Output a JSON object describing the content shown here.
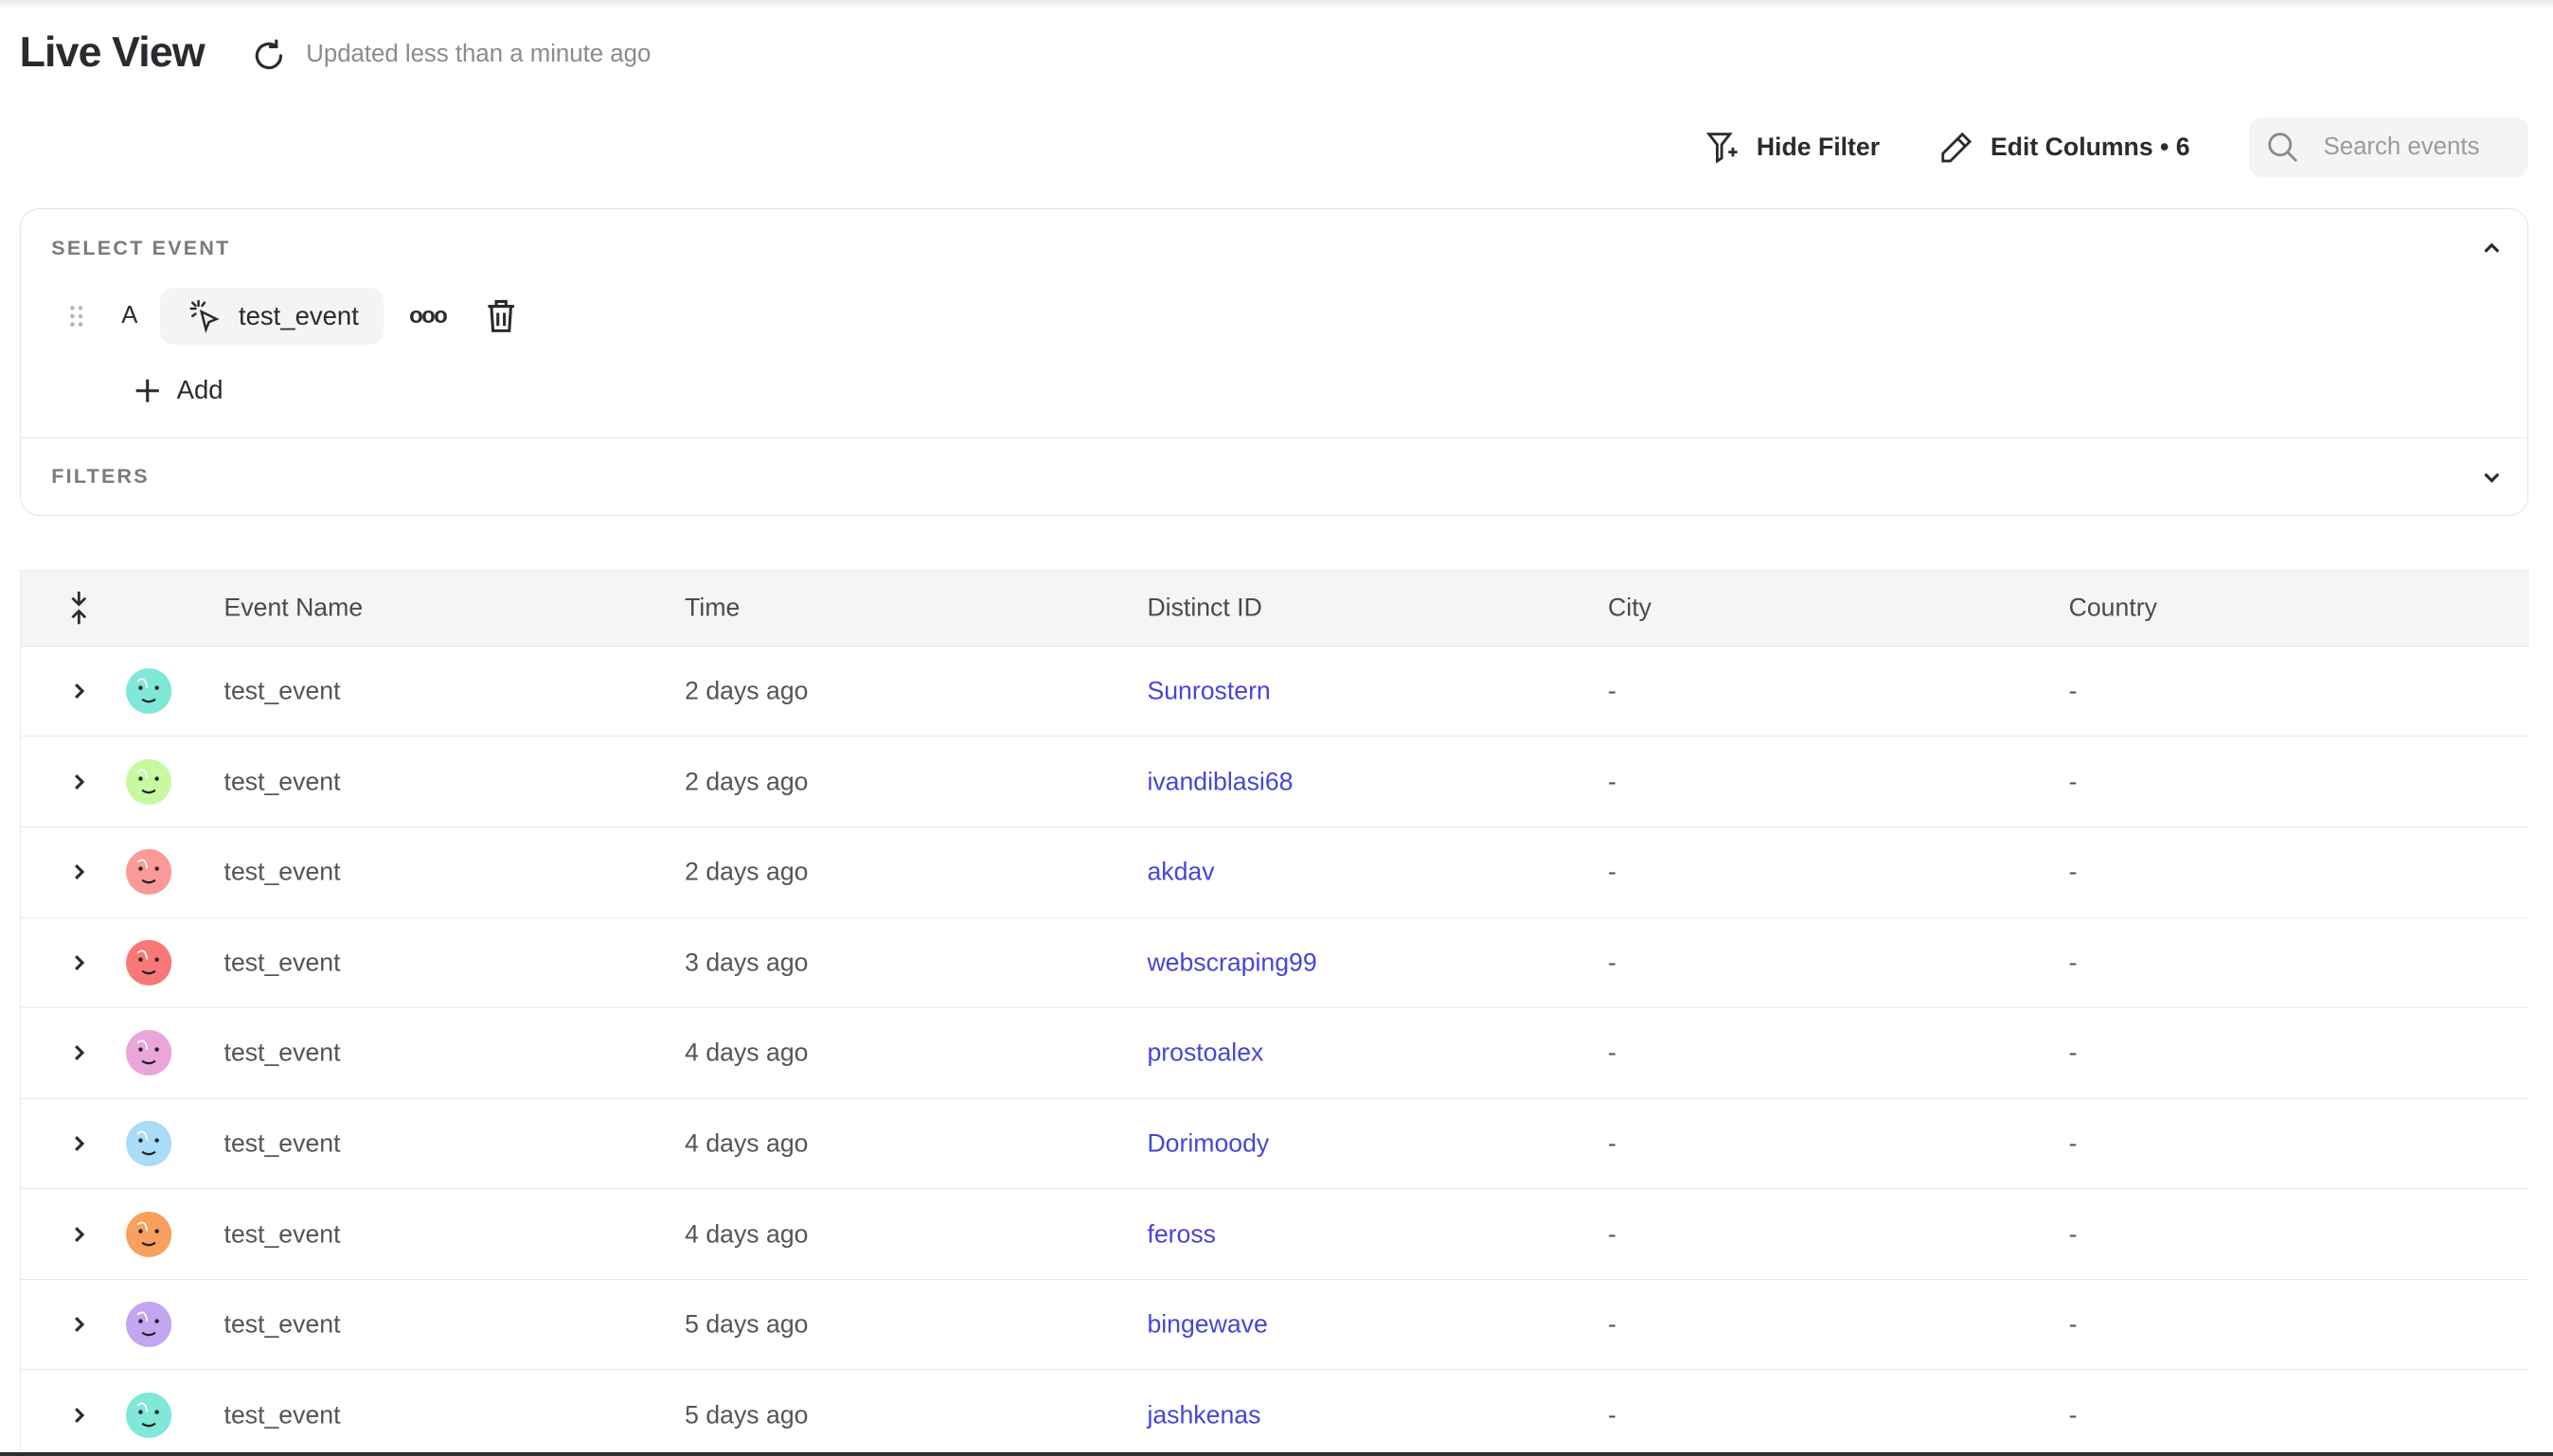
{
  "header": {
    "title": "Live View",
    "updated": "Updated less than a minute ago"
  },
  "toolbar": {
    "hide_filter": "Hide Filter",
    "edit_columns": "Edit Columns • 6",
    "search_placeholder": "Search events"
  },
  "select_event": {
    "label": "SELECT EVENT",
    "letter": "A",
    "event": "test_event",
    "more": "ooo",
    "add": "Add"
  },
  "filters": {
    "label": "FILTERS"
  },
  "table": {
    "columns": [
      "Event Name",
      "Time",
      "Distinct ID",
      "City",
      "Country"
    ],
    "rows": [
      {
        "event": "test_event",
        "time": "2 days ago",
        "distinct_id": "Sunrostern",
        "city": "-",
        "country": "-",
        "avatar_color": "#7fe8d8"
      },
      {
        "event": "test_event",
        "time": "2 days ago",
        "distinct_id": "ivandiblasi68",
        "city": "-",
        "country": "-",
        "avatar_color": "#c8f9a0"
      },
      {
        "event": "test_event",
        "time": "2 days ago",
        "distinct_id": "akdav",
        "city": "-",
        "country": "-",
        "avatar_color": "#f99a98"
      },
      {
        "event": "test_event",
        "time": "3 days ago",
        "distinct_id": "webscraping99",
        "city": "-",
        "country": "-",
        "avatar_color": "#f87777"
      },
      {
        "event": "test_event",
        "time": "4 days ago",
        "distinct_id": "prostoalex",
        "city": "-",
        "country": "-",
        "avatar_color": "#eaa6d8"
      },
      {
        "event": "test_event",
        "time": "4 days ago",
        "distinct_id": "Dorimoody",
        "city": "-",
        "country": "-",
        "avatar_color": "#a9dcf6"
      },
      {
        "event": "test_event",
        "time": "4 days ago",
        "distinct_id": "feross",
        "city": "-",
        "country": "-",
        "avatar_color": "#f8a05e"
      },
      {
        "event": "test_event",
        "time": "5 days ago",
        "distinct_id": "bingewave",
        "city": "-",
        "country": "-",
        "avatar_color": "#c3a6f1"
      },
      {
        "event": "test_event",
        "time": "5 days ago",
        "distinct_id": "jashkenas",
        "city": "-",
        "country": "-",
        "avatar_color": "#7fe8d8"
      }
    ]
  },
  "colors": {
    "link": "#4646d8",
    "chip_bg": "#f4f4f4",
    "header_bg": "#f5f5f5"
  }
}
